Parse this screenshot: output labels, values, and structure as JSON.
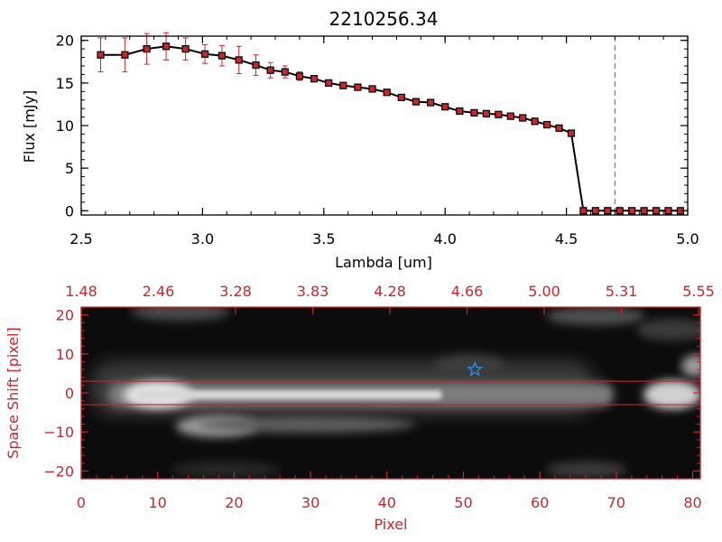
{
  "chart_data": [
    {
      "type": "line",
      "title": "2210256.34",
      "xlabel": "Lambda [um]",
      "ylabel": "Flux [mJy]",
      "xlim": [
        2.5,
        5.0
      ],
      "ylim": [
        -0.5,
        20.5
      ],
      "xticks": [
        2.5,
        3.0,
        3.5,
        4.0,
        4.5,
        5.0
      ],
      "xtick_labels": [
        "2.5",
        "3.0",
        "3.5",
        "4.0",
        "4.5",
        "5.0"
      ],
      "yticks": [
        0,
        5,
        10,
        15,
        20
      ],
      "ytick_labels": [
        "0",
        "5",
        "10",
        "15",
        "20"
      ],
      "reference_line_x": 4.7,
      "colors": {
        "line": "#000000",
        "marker": "#c8262c",
        "error": "#c8262c",
        "ref": "#3a8fb5"
      },
      "series": [
        {
          "name": "flux",
          "x": [
            2.58,
            2.68,
            2.77,
            2.85,
            2.93,
            3.01,
            3.08,
            3.15,
            3.22,
            3.28,
            3.34,
            3.4,
            3.46,
            3.52,
            3.58,
            3.64,
            3.7,
            3.76,
            3.82,
            3.88,
            3.94,
            4.0,
            4.06,
            4.12,
            4.17,
            4.22,
            4.27,
            4.32,
            4.37,
            4.42,
            4.47,
            4.52,
            4.57,
            4.62,
            4.67,
            4.72,
            4.77,
            4.82,
            4.87,
            4.92,
            4.97
          ],
          "y": [
            18.3,
            18.3,
            19.0,
            19.3,
            19.0,
            18.4,
            18.2,
            17.7,
            17.1,
            16.5,
            16.3,
            15.8,
            15.5,
            15.0,
            14.7,
            14.5,
            14.3,
            13.9,
            13.3,
            12.8,
            12.7,
            12.2,
            11.7,
            11.5,
            11.4,
            11.3,
            11.1,
            10.9,
            10.5,
            10.1,
            9.7,
            9.1,
            0.0,
            0.0,
            0.0,
            0.0,
            0.0,
            0.0,
            0.0,
            0.0,
            0.0
          ],
          "yerr": [
            2.0,
            2.0,
            1.8,
            1.6,
            1.3,
            1.1,
            1.2,
            1.6,
            1.2,
            0.9,
            0.7,
            0.5,
            0.35,
            0.3,
            0.25,
            0.2,
            0.2,
            0.2,
            0.2,
            0.2,
            0.2,
            0.2,
            0.2,
            0.2,
            0.2,
            0.2,
            0.2,
            0.2,
            0.2,
            0.2,
            0.2,
            0.2,
            0.2,
            0.2,
            0.2,
            0.2,
            0.2,
            0.2,
            0.2,
            0.2,
            0.2
          ]
        }
      ]
    },
    {
      "type": "heatmap",
      "xlabel": "Pixel",
      "ylabel": "Space Shift [pixel]",
      "xlim": [
        0,
        81
      ],
      "ylim": [
        -22,
        22
      ],
      "xticks": [
        0,
        10,
        20,
        30,
        40,
        50,
        60,
        70,
        80
      ],
      "xtick_labels": [
        "0",
        "10",
        "20",
        "30",
        "40",
        "50",
        "60",
        "70",
        "80"
      ],
      "yticks": [
        -20,
        -10,
        0,
        10,
        20
      ],
      "ytick_labels": [
        "−20",
        "−10",
        "0",
        "10",
        "20"
      ],
      "top_axis_labels": [
        "1.48",
        "2.46",
        "3.28",
        "3.83",
        "4.28",
        "4.66",
        "5.00",
        "5.31",
        "5.55"
      ],
      "aperture_lines_y": [
        3,
        -3
      ],
      "star_marker": {
        "x": 51.5,
        "y": 6
      },
      "colors": {
        "axis": "#c8262c",
        "aperture": "#c8262c",
        "star": "#2b8cde"
      }
    }
  ]
}
